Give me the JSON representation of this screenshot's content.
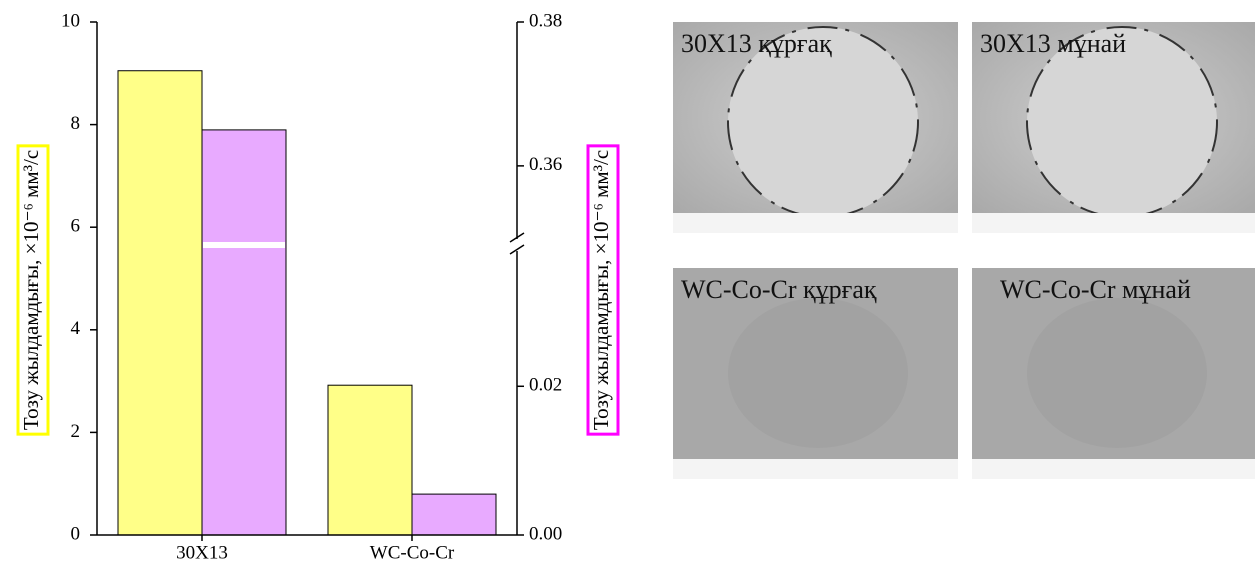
{
  "chart_data": {
    "type": "bar",
    "categories": [
      "30X13",
      "WC-Co-Cr"
    ],
    "y_label": "Тозу жылдамдығы, ×10⁻⁶ мм³/с",
    "y2_label": "Тозу жылдамдығы, ×10⁻⁶ мм³/с",
    "series": [
      {
        "color": "#ffff88",
        "values": [
          9.05,
          2.92
        ]
      },
      {
        "color": "#e8aaff",
        "axis": "y2",
        "values": [
          0.365,
          0.0055
        ]
      }
    ],
    "ylim": [
      0,
      10
    ],
    "yticks": [
      0,
      2,
      4,
      6,
      8,
      10
    ],
    "y2lim": [
      0,
      0.38
    ],
    "y2ticks": [
      {
        "value": 0,
        "label": "0.00"
      },
      {
        "value": 0.02,
        "label": "0.02"
      },
      0.36,
      0.38
    ],
    "y2_break": [
      0.039,
      0.349
    ],
    "y_label_box_color": "#ffff00",
    "y2_label_box_color": "#ff00ff"
  },
  "images": [
    {
      "label": "30X13 құрғақ"
    },
    {
      "label": "30X13 мұнай"
    },
    {
      "label": "WC-Co-Cr құрғақ"
    },
    {
      "label": "WC-Co-Cr мұнай"
    }
  ]
}
